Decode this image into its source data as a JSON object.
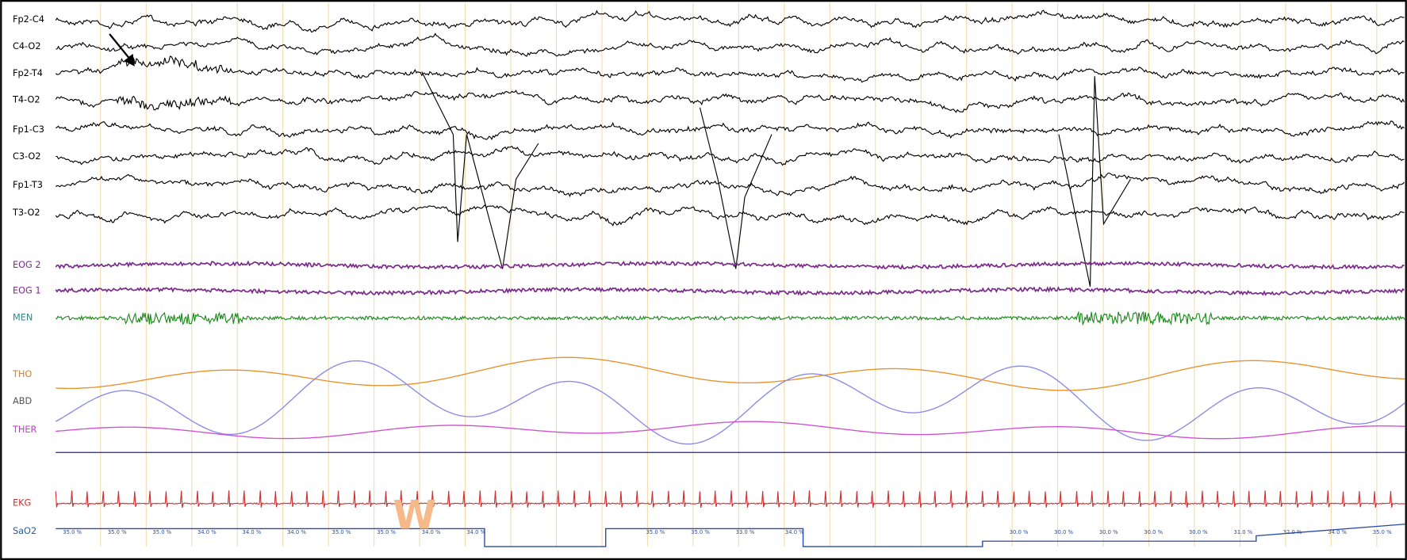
{
  "channels": [
    {
      "label": "Fp2-C4"
    },
    {
      "label": "C4-O2"
    },
    {
      "label": "Fp2-T4"
    },
    {
      "label": "T4-O2"
    },
    {
      "label": "Fp1-C3"
    },
    {
      "label": "C3-O2"
    },
    {
      "label": "Fp1-T3"
    },
    {
      "label": "T3-O2"
    },
    {
      "label": "EOG 2"
    },
    {
      "label": "EOG 1"
    },
    {
      "label": "MEN"
    },
    {
      "label": "THO"
    },
    {
      "label": "ABD"
    },
    {
      "label": "THER"
    },
    {
      "label": "EKG"
    },
    {
      "label": "SaO2"
    }
  ],
  "stage": "W",
  "sao2_labels": [
    "35.0 %",
    "35.0 %",
    "35.0 %",
    "34.0 %",
    "34.0 %",
    "34.0 %",
    "35.0 %",
    "35.0 %",
    "34.0 %",
    "34.0 %",
    "35.0 %",
    "35.0 %",
    "33.0 %",
    "34.0 %",
    "30.0 %",
    "30.0 %",
    "30.0 %",
    "30.0 %",
    "30.0 %",
    "31.0 %",
    "32.0 %",
    "34.0 %",
    "35.0 %"
  ]
}
